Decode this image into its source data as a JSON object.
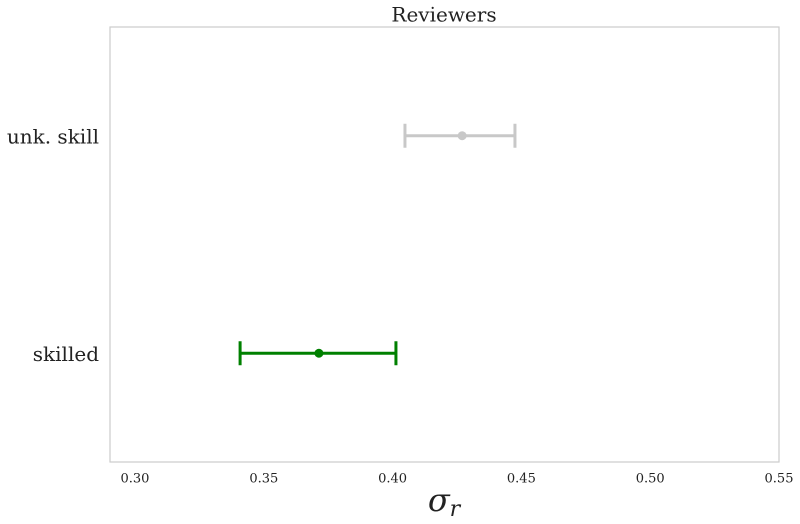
{
  "chart_data": {
    "type": "errorbar",
    "title": "Reviewers",
    "xlabel": {
      "symbol": "σ",
      "subscript": "r"
    },
    "categories": [
      "unk. skill",
      "skilled"
    ],
    "values": [
      0.427,
      0.3714
    ],
    "lower": [
      0.4048,
      0.3408
    ],
    "upper": [
      0.4475,
      0.4013
    ],
    "colors": [
      "#c8c8c8",
      "#008000"
    ],
    "xlim": [
      0.2903,
      0.55
    ],
    "xticks": [
      {
        "value": 0.3,
        "label": "0.30"
      },
      0.35,
      {
        "value": 0.4,
        "label": "0.40"
      },
      0.45,
      {
        "value": 0.5,
        "label": "0.50"
      },
      0.55
    ],
    "grid": false
  }
}
